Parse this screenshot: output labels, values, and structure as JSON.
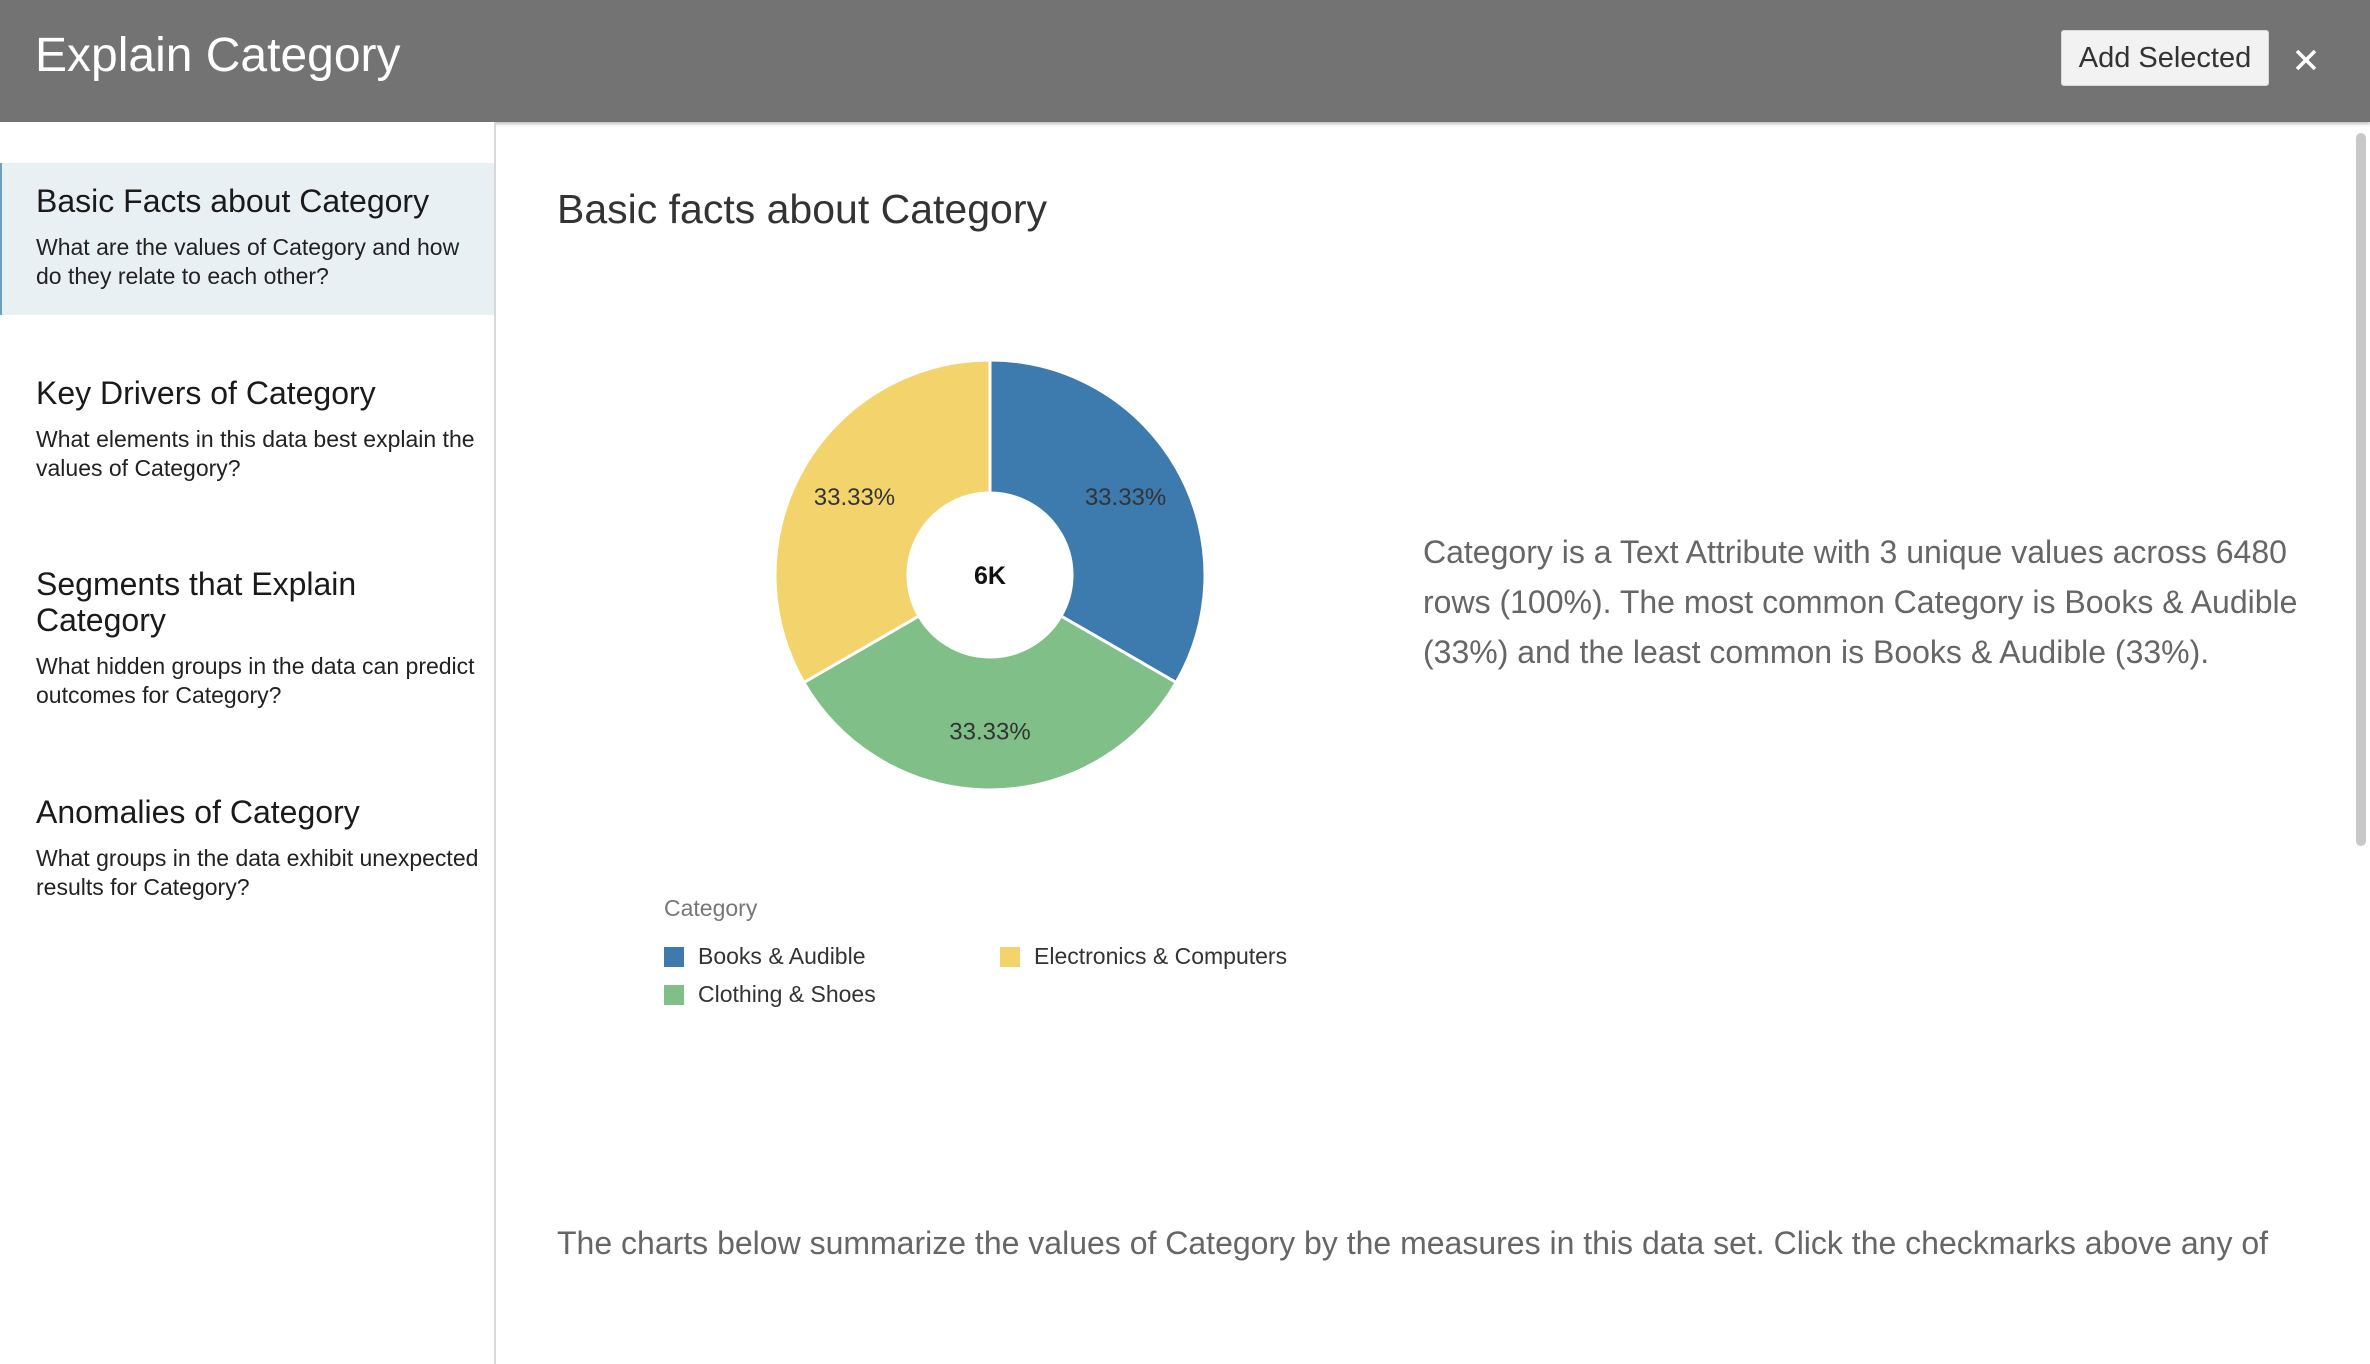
{
  "header": {
    "title": "Explain Category",
    "add_selected_label": "Add Selected"
  },
  "sidebar": {
    "items": [
      {
        "title": "Basic Facts about Category",
        "description": "What are the values of Category and how do they relate to each other?",
        "active": true
      },
      {
        "title": "Key Drivers of Category",
        "description": "What elements in this data best explain the values of Category?",
        "active": false
      },
      {
        "title": "Segments that Explain Category",
        "description": "What hidden groups in the data can predict outcomes for Category?",
        "active": false
      },
      {
        "title": "Anomalies of Category",
        "description": "What groups in the data exhibit unexpected results for Category?",
        "active": false
      }
    ]
  },
  "main": {
    "title": "Basic facts about Category",
    "summary": "Category is a Text Attribute with 3 unique values across 6480 rows (100%). The most common Category is Books & Audible (33%) and the least common is Books & Audible (33%).",
    "bottom_text": "The charts below summarize the values of Category by the measures in this data set. Click the checkmarks above any of"
  },
  "chart_data": {
    "type": "pie",
    "donut": true,
    "center_label": "6K",
    "legend_title": "Category",
    "categories": [
      "Books & Audible",
      "Clothing & Shoes",
      "Electronics & Computers"
    ],
    "values": [
      33.33,
      33.33,
      33.33
    ],
    "labels": [
      "33.33%",
      "33.33%",
      "33.33%"
    ],
    "colors": [
      "#3d7aae",
      "#80c088",
      "#f3d46c"
    ],
    "legend_placement": "bottom-left"
  },
  "icons": {
    "close": "close-icon"
  }
}
